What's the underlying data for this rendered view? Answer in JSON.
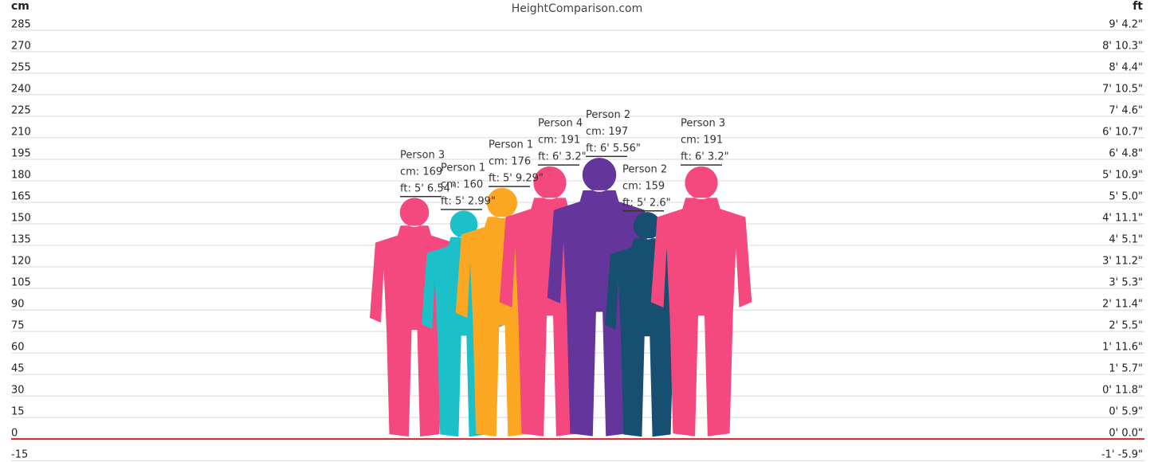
{
  "chart_data": {
    "type": "height-comparison",
    "title": "HeightComparison.com",
    "y_label": "cm",
    "y2_label": "ft",
    "ylim": [
      -16,
      306
    ],
    "yticks": [
      285,
      270,
      255,
      240,
      225,
      210,
      195,
      180,
      165,
      150,
      135,
      120,
      105,
      90,
      75,
      60,
      45,
      30,
      15,
      0,
      -15
    ],
    "y2lim": [
      -16,
      306
    ],
    "y2ticks": [
      {
        "value": 285,
        "label": "9' 4.2\""
      },
      {
        "value": 270,
        "label": "8' 10.3\""
      },
      {
        "value": 255,
        "label": "8' 4.4\""
      },
      {
        "value": 240,
        "label": "7' 10.5\""
      },
      {
        "value": 225,
        "label": "7' 4.6\""
      },
      {
        "value": 210,
        "label": "6' 10.7\""
      },
      {
        "value": 195,
        "label": "6' 4.8\""
      },
      {
        "value": 180,
        "label": "5' 10.9\""
      },
      {
        "value": 165,
        "label": "5' 5.0\""
      },
      {
        "value": 150,
        "label": "4' 11.1\""
      },
      {
        "value": 135,
        "label": "4' 5.1\""
      },
      {
        "value": 120,
        "label": "3' 11.2\""
      },
      {
        "value": 105,
        "label": "3' 5.3\""
      },
      {
        "value": 90,
        "label": "2' 11.4\""
      },
      {
        "value": 75,
        "label": "2' 5.5\""
      },
      {
        "value": 60,
        "label": "1' 11.6\""
      },
      {
        "value": 45,
        "label": "1' 5.7\""
      },
      {
        "value": 30,
        "label": "0' 11.8\""
      },
      {
        "value": 15,
        "label": "0' 5.9\""
      },
      {
        "value": 0,
        "label": "0' 0.0\""
      },
      {
        "value": -15,
        "label": "-1' -5.9\""
      }
    ],
    "grid": true,
    "baseline_color": "#d62020",
    "categories": [
      "Person 3",
      "Person 1",
      "Person 1",
      "Person 4",
      "Person 2",
      "Person 2",
      "Person 3"
    ],
    "values": [
      169,
      160,
      176,
      191,
      197,
      159,
      191
    ],
    "value_labels": [
      "cm: 169",
      "cm: 160",
      "cm: 176",
      "cm: 191",
      "cm: 197",
      "cm: 159",
      "cm: 191"
    ],
    "ft_labels": [
      "ft: 5' 6.54\"",
      "ft: 5' 2.99\"",
      "ft: 5' 9.29\"",
      "ft: 6' 3.2\"",
      "ft: 6' 5.56\"",
      "ft: 5' 2.6\"",
      "ft: 6' 3.2\""
    ],
    "colors": [
      "#f4497f",
      "#1cc0c8",
      "#fca722",
      "#f4497f",
      "#64359a",
      "#164f70",
      "#f4497f"
    ]
  }
}
